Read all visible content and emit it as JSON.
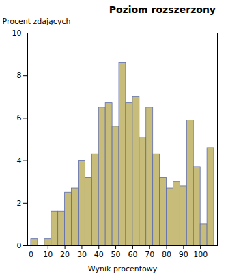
{
  "chart_data": {
    "type": "histogram",
    "title": "Poziom rozszerzony",
    "xlabel": "Wynik procentowy",
    "ylabel": "Procent zdających",
    "bins": [
      0,
      4,
      8,
      12,
      16,
      20,
      24,
      28,
      32,
      36,
      40,
      44,
      48,
      52,
      56,
      60,
      64,
      68,
      72,
      76,
      80,
      84,
      88,
      92,
      96,
      100,
      104,
      108
    ],
    "values": [
      0.3,
      0.0,
      0.3,
      1.6,
      1.6,
      2.5,
      2.7,
      4.0,
      3.2,
      4.3,
      6.5,
      6.7,
      5.6,
      8.6,
      6.7,
      7.0,
      5.1,
      6.5,
      4.3,
      3.2,
      2.7,
      3.0,
      2.8,
      5.9,
      3.7,
      1.0,
      4.6
    ],
    "color": "#C8BC7A",
    "xlim": [
      -2,
      110
    ],
    "ylim": [
      0,
      10
    ],
    "xticks": [
      0,
      10,
      20,
      30,
      40,
      50,
      60,
      70,
      80,
      90,
      100
    ],
    "yticks": [
      0,
      2,
      4,
      6,
      8,
      10
    ],
    "grid": false
  }
}
